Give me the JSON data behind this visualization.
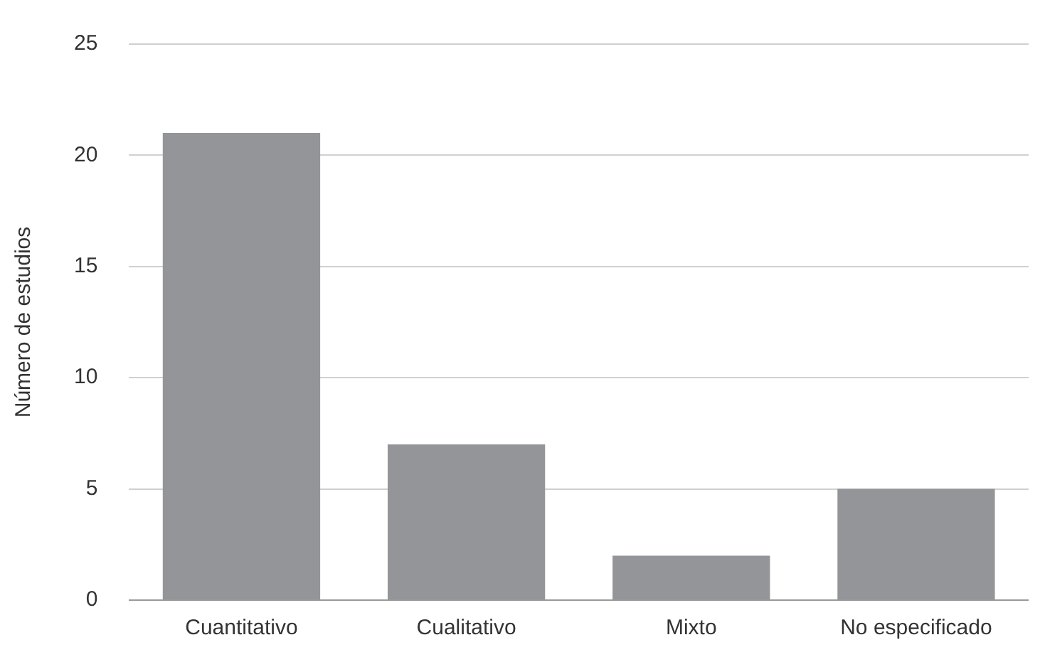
{
  "chart_data": {
    "type": "bar",
    "ylabel": "Número de estudios",
    "categories": [
      "Cuantitativo",
      "Cualitativo",
      "Mixto",
      "No especificado"
    ],
    "values": [
      21,
      7,
      2,
      5
    ],
    "color": "#939598",
    "ylim": [
      0,
      25
    ],
    "yticks": [
      0,
      5,
      10,
      15,
      20,
      25
    ],
    "grid": "y",
    "legend": false
  }
}
